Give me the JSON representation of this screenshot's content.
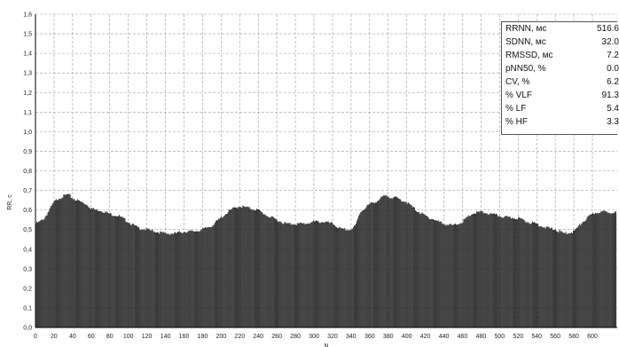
{
  "chart_data": {
    "type": "bar",
    "ylabel": "RR, c",
    "xlabel": "N",
    "ylim": [
      0,
      1.6
    ],
    "xlim": [
      0,
      600
    ],
    "grid": true,
    "y_ticks": [
      "0,0",
      "0,1",
      "0,2",
      "0,3",
      "0,4",
      "0,5",
      "0,6",
      "0,7",
      "0,8",
      "0,9",
      "1,0",
      "1,1",
      "1,2",
      "1,3",
      "1,4",
      "1,5",
      "1,6"
    ],
    "x_ticks": [
      "0",
      "20",
      "40",
      "60",
      "80",
      "100",
      "120",
      "140",
      "160",
      "180",
      "200",
      "220",
      "240",
      "260",
      "280",
      "300",
      "320",
      "340",
      "360",
      "380",
      "400",
      "420",
      "440",
      "460",
      "480",
      "500",
      "520",
      "540",
      "560",
      "580",
      "600"
    ],
    "series_profile": {
      "description_points_x": [
        0,
        5,
        10,
        15,
        20,
        25,
        30,
        35,
        40,
        45,
        50,
        55,
        60,
        65,
        70,
        80,
        90,
        100,
        110,
        120,
        130,
        140,
        150,
        160,
        170,
        180,
        190,
        200,
        210,
        220,
        230,
        240,
        250,
        260,
        270,
        280,
        290,
        300,
        310,
        320,
        330,
        340,
        345,
        350,
        360,
        370,
        375,
        380,
        390,
        400,
        410,
        420,
        430,
        440,
        450,
        460,
        470,
        480,
        490,
        500,
        510,
        520,
        530,
        540,
        550,
        560,
        570,
        580,
        590,
        600,
        606
      ],
      "description_points_y": [
        0.53,
        0.54,
        0.56,
        0.6,
        0.64,
        0.66,
        0.67,
        0.68,
        0.66,
        0.65,
        0.64,
        0.63,
        0.61,
        0.6,
        0.6,
        0.58,
        0.57,
        0.54,
        0.51,
        0.5,
        0.49,
        0.48,
        0.48,
        0.49,
        0.49,
        0.5,
        0.52,
        0.56,
        0.6,
        0.62,
        0.61,
        0.6,
        0.57,
        0.55,
        0.53,
        0.53,
        0.53,
        0.54,
        0.54,
        0.53,
        0.5,
        0.5,
        0.52,
        0.59,
        0.63,
        0.65,
        0.67,
        0.67,
        0.66,
        0.64,
        0.6,
        0.57,
        0.55,
        0.53,
        0.52,
        0.54,
        0.58,
        0.59,
        0.58,
        0.57,
        0.56,
        0.56,
        0.54,
        0.53,
        0.51,
        0.5,
        0.48,
        0.49,
        0.54,
        0.58,
        0.59
      ]
    },
    "stats": [
      {
        "label": "RRNN, мс",
        "value": "516.6"
      },
      {
        "label": "SDNN, мс",
        "value": "32.0"
      },
      {
        "label": "RMSSD, мс",
        "value": "7.2"
      },
      {
        "label": "pNN50, %",
        "value": "0.0"
      },
      {
        "label": "CV, %",
        "value": "6.2"
      },
      {
        "label": "% VLF",
        "value": "91.3"
      },
      {
        "label": "% LF",
        "value": "5.4"
      },
      {
        "label": "% HF",
        "value": "3.3"
      }
    ]
  }
}
